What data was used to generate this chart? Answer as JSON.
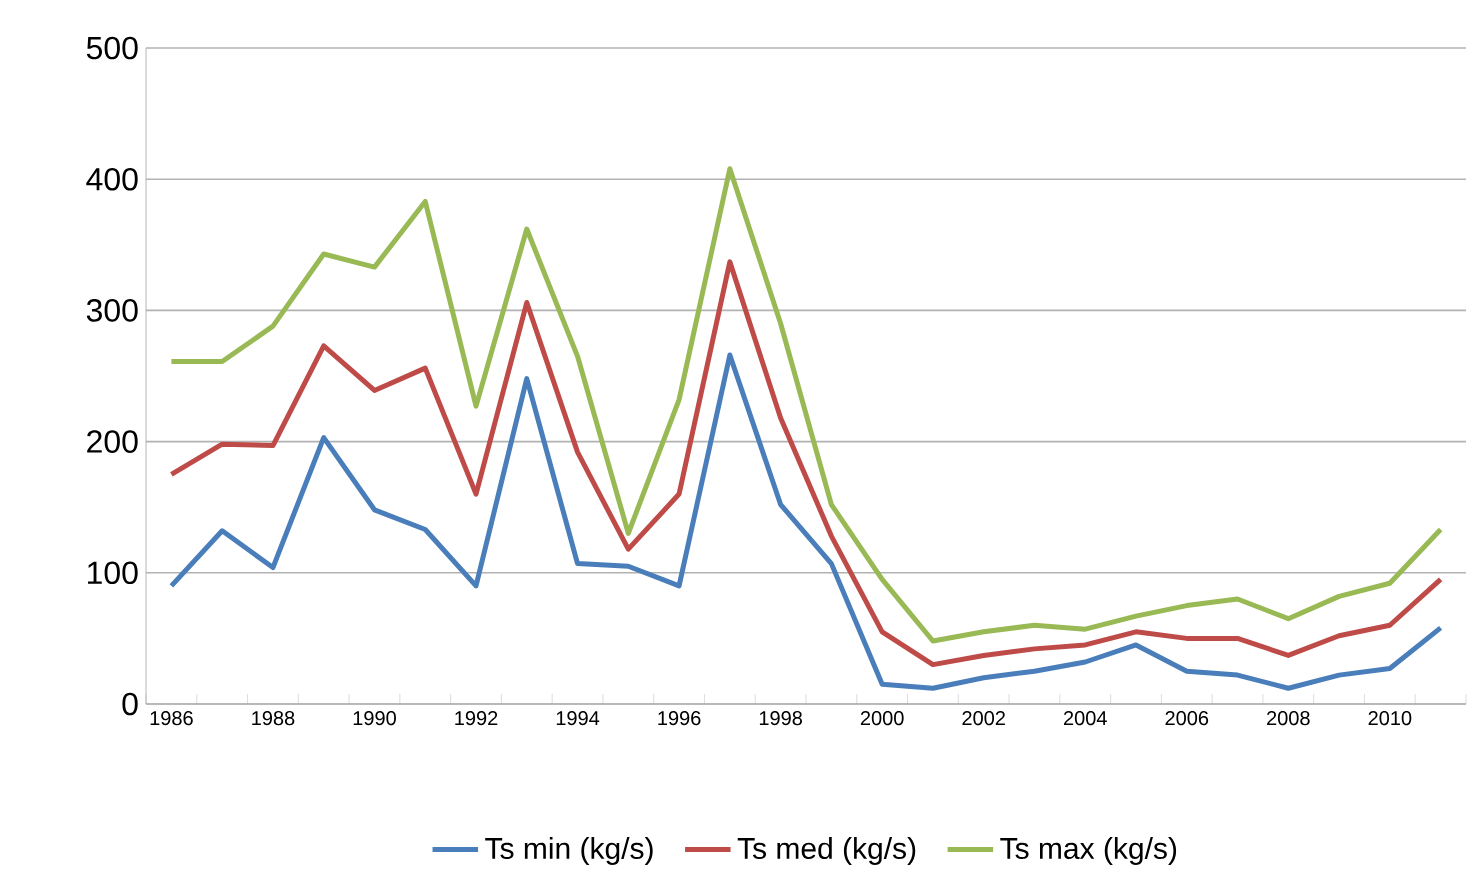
{
  "chart_data": {
    "type": "line",
    "categories": [
      "1986",
      null,
      "1988",
      null,
      "1990",
      null,
      "1992",
      null,
      "1994",
      null,
      "1996",
      null,
      "1998",
      null,
      "2000",
      null,
      "2002",
      null,
      "2004",
      null,
      "2006",
      null,
      "2008",
      null,
      "2010",
      null
    ],
    "series": [
      {
        "name": "Ts min (kg/s)",
        "color": "#4a7ebb",
        "values": [
          90,
          132,
          104,
          203,
          148,
          133,
          90,
          248,
          107,
          105,
          90,
          266,
          152,
          107,
          15,
          12,
          20,
          25,
          32,
          45,
          25,
          22,
          12,
          22,
          27,
          58
        ]
      },
      {
        "name": "Ts med (kg/s)",
        "color": "#be4b48",
        "values": [
          175,
          198,
          197,
          273,
          239,
          256,
          160,
          306,
          192,
          118,
          160,
          337,
          218,
          128,
          55,
          30,
          37,
          42,
          45,
          55,
          50,
          50,
          37,
          52,
          60,
          95
        ]
      },
      {
        "name": "Ts max (kg/s)",
        "color": "#98b954",
        "values": [
          261,
          261,
          288,
          343,
          333,
          383,
          227,
          362,
          265,
          130,
          232,
          408,
          290,
          152,
          95,
          48,
          55,
          60,
          57,
          67,
          75,
          80,
          65,
          82,
          92,
          133
        ]
      }
    ],
    "ylim": [
      0,
      500
    ],
    "yticks": [
      0,
      100,
      200,
      300,
      400,
      500
    ],
    "grid": "y",
    "legend": "bottom",
    "marker": "none",
    "line_style": "solid"
  }
}
